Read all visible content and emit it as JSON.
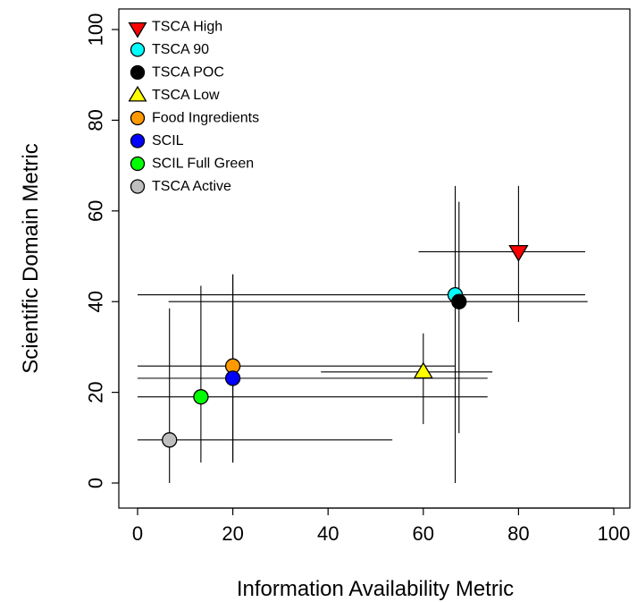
{
  "chart_data": {
    "type": "scatter",
    "title": "",
    "xlabel": "Information Availability Metric",
    "ylabel": "Scientific Domain Metric",
    "xlim": [
      0,
      100
    ],
    "ylim": [
      0,
      100
    ],
    "xticks": [
      0,
      20,
      40,
      60,
      80,
      100
    ],
    "yticks": [
      0,
      20,
      40,
      60,
      80,
      100
    ],
    "grid": false,
    "legend_position": "top-left",
    "series": [
      {
        "name": "TSCA High",
        "marker": "triangle-down",
        "color": "#ff0000",
        "x": 80,
        "y": 51,
        "x_range": [
          59,
          94
        ],
        "y_range": [
          35.5,
          65.5
        ]
      },
      {
        "name": "TSCA 90",
        "marker": "circle",
        "color": "#00ffff",
        "x": 66.7,
        "y": 41.5,
        "x_range": [
          0,
          94
        ],
        "y_range": [
          0,
          65.5
        ]
      },
      {
        "name": "TSCA POC",
        "marker": "circle",
        "color": "#000000",
        "x": 67.5,
        "y": 40,
        "x_range": [
          6.5,
          94.5
        ],
        "y_range": [
          11,
          62
        ]
      },
      {
        "name": "TSCA Low",
        "marker": "triangle-up",
        "color": "#ffff00",
        "x": 60,
        "y": 24.5,
        "x_range": [
          38.5,
          74.5
        ],
        "y_range": [
          13,
          33
        ]
      },
      {
        "name": "Food Ingredients",
        "marker": "circle",
        "color": "#ff9900",
        "x": 20,
        "y": 25.8,
        "x_range": [
          0,
          66.7
        ],
        "y_range": [
          4.5,
          46
        ]
      },
      {
        "name": "SCIL",
        "marker": "circle",
        "color": "#0000ff",
        "x": 20,
        "y": 23.1,
        "x_range": [
          0,
          73.5
        ],
        "y_range": [
          4.5,
          46
        ]
      },
      {
        "name": "SCIL Full Green",
        "marker": "circle",
        "color": "#00ff00",
        "x": 13.3,
        "y": 19,
        "x_range": [
          0,
          73.5
        ],
        "y_range": [
          4.5,
          43.5
        ]
      },
      {
        "name": "TSCA Active",
        "marker": "circle",
        "color": "#bebebe",
        "x": 6.7,
        "y": 9.5,
        "x_range": [
          0,
          53.5
        ],
        "y_range": [
          0,
          38.5
        ]
      }
    ]
  }
}
